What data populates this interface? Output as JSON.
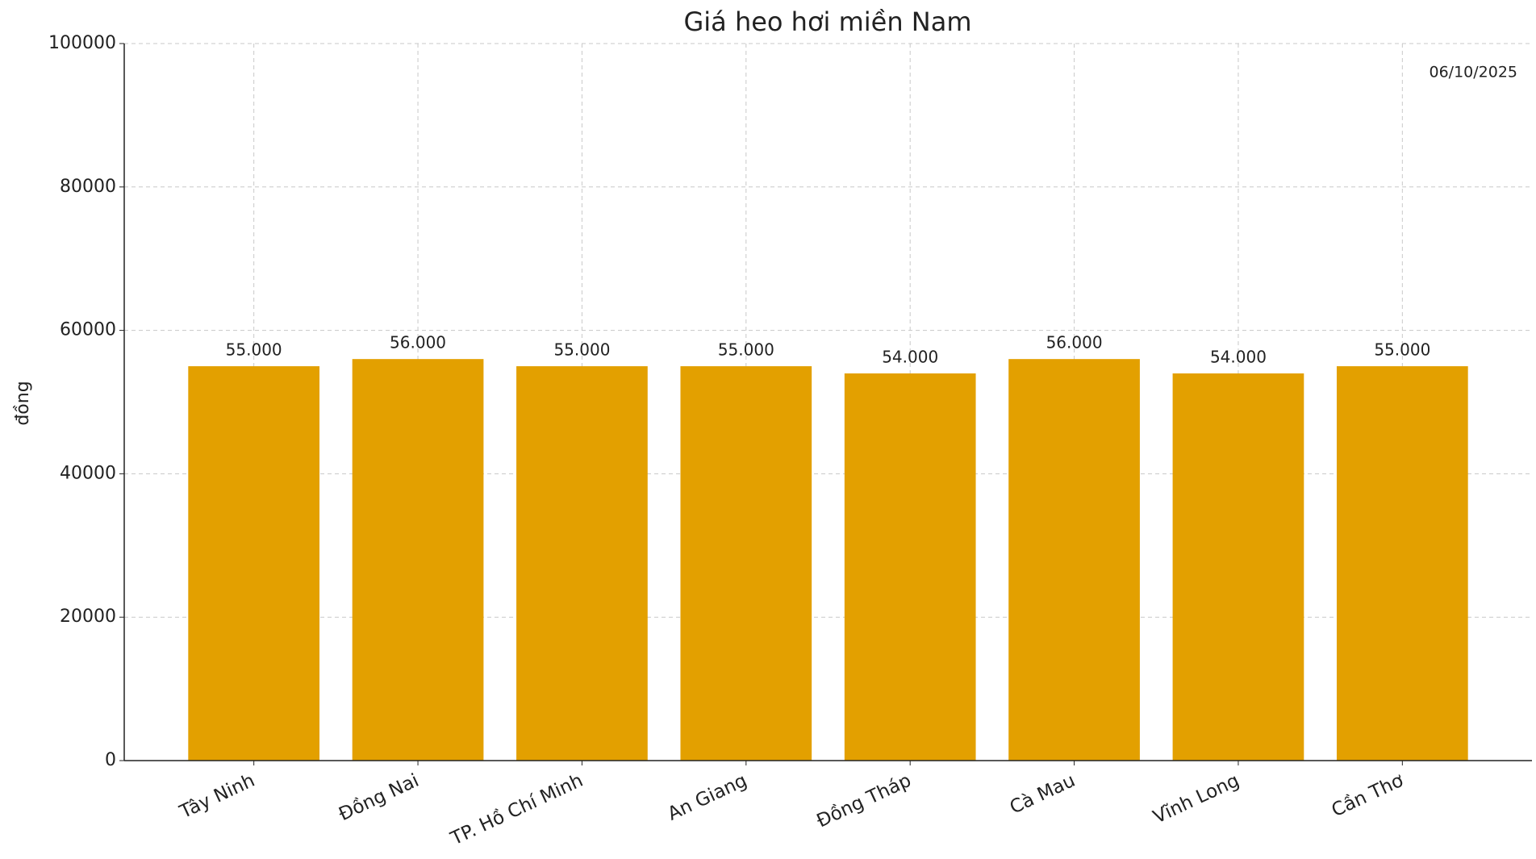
{
  "chart_data": {
    "type": "bar",
    "title": "Giá heo hơi miền Nam",
    "annotation": "06/10/2025",
    "y_label": "đồng",
    "categories": [
      "Tây Ninh",
      "Đồng Nai",
      "TP. Hồ Chí Minh",
      "An Giang",
      "Đồng Tháp",
      "Cà Mau",
      "Vĩnh Long",
      "Cần Thơ"
    ],
    "values": [
      55000,
      56000,
      55000,
      55000,
      54000,
      56000,
      54000,
      55000
    ],
    "value_labels": [
      "55.000",
      "56.000",
      "55.000",
      "55.000",
      "54.000",
      "56.000",
      "54.000",
      "55.000"
    ],
    "color": "#e3a000",
    "ylim": [
      0,
      100000
    ],
    "yticks": [
      0,
      20000,
      40000,
      60000,
      80000,
      100000
    ],
    "grid": true
  }
}
